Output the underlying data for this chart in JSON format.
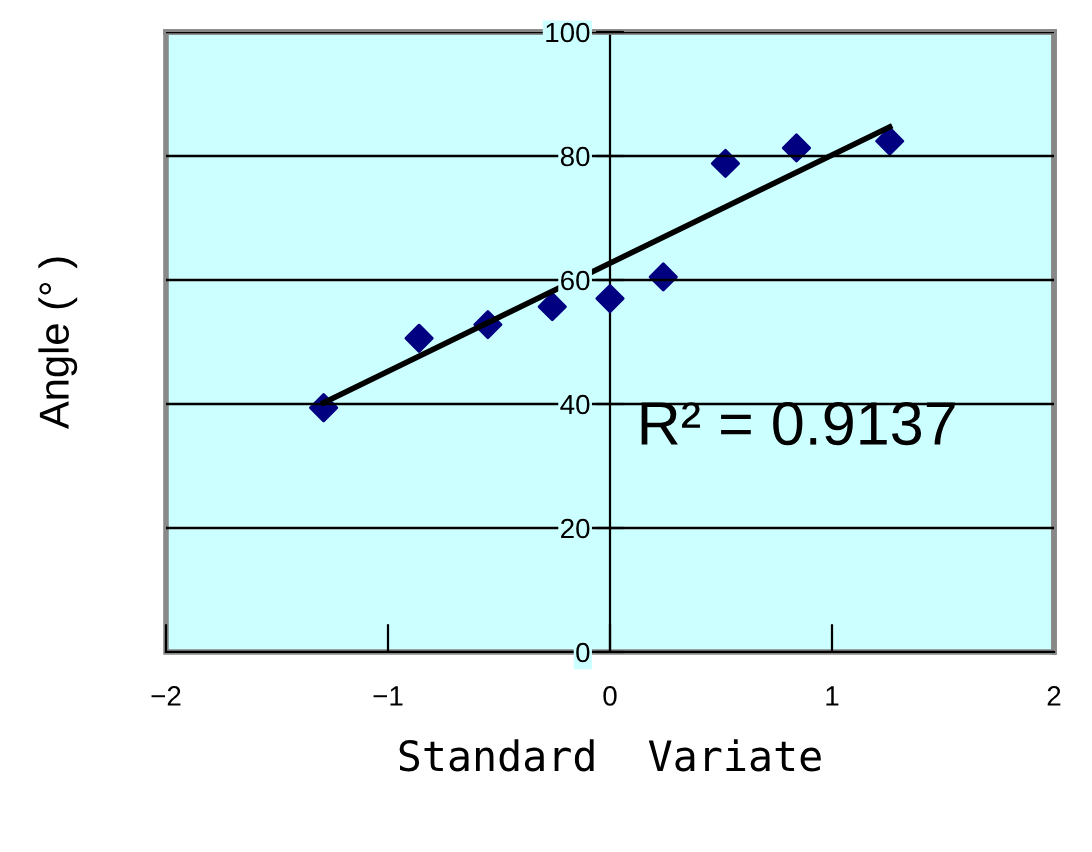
{
  "chart_data": {
    "type": "scatter",
    "xlabel": "Standard  Variate",
    "ylabel": "Angle (° )",
    "x": [
      -1.29,
      -0.86,
      -0.55,
      -0.26,
      0,
      0.24,
      0.52,
      0.84,
      1.26
    ],
    "series": [
      {
        "color": "#000080",
        "marker": "diamond",
        "values": [
          39.4,
          50.6,
          52.8,
          55.7,
          57.0,
          60.5,
          78.8,
          81.3,
          82.4
        ]
      },
      {
        "type": "line",
        "color": "#000000",
        "marker": "none",
        "x": [
          -1.29,
          1.26
        ],
        "values": [
          40.2,
          84.7
        ]
      }
    ],
    "annotations": [
      "R² = 0.9137"
    ],
    "xlim": [
      -2,
      2
    ],
    "xticks": [
      {
        "value": -2,
        "label": "−2"
      },
      {
        "value": -1,
        "label": "−1"
      },
      0,
      1,
      2
    ],
    "ylim": [
      0,
      100
    ],
    "yticks": [
      0,
      20,
      40,
      60,
      80,
      100
    ],
    "grid": "y"
  }
}
